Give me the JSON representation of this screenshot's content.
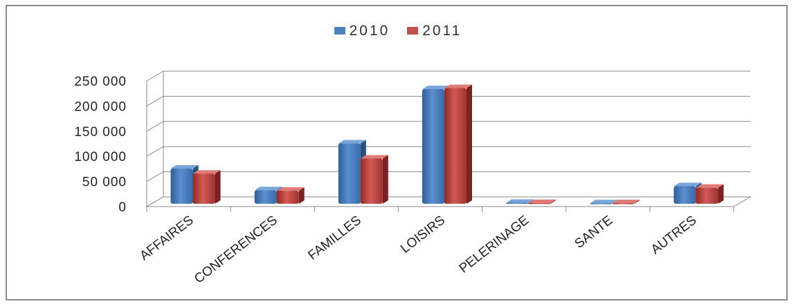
{
  "chart_data": {
    "type": "bar",
    "categories": [
      "AFFAIRES",
      "CONFERENCES",
      "FAMILLES",
      "LOISIRS",
      "PELERINAGE",
      "SANTE",
      "AUTRES"
    ],
    "series": [
      {
        "name": "2010",
        "color": "#4f81bd",
        "values": [
          70000,
          27000,
          120000,
          228000,
          2000,
          1000,
          35000
        ]
      },
      {
        "name": "2011",
        "color": "#c0504d",
        "values": [
          60000,
          26000,
          90000,
          230000,
          1500,
          1200,
          32000
        ]
      }
    ],
    "yticks": [
      "0",
      "50 000",
      "100 000",
      "150 000",
      "200 000",
      "250 000"
    ],
    "ylim": [
      0,
      250000
    ],
    "grid": true,
    "legend_position": "top"
  }
}
